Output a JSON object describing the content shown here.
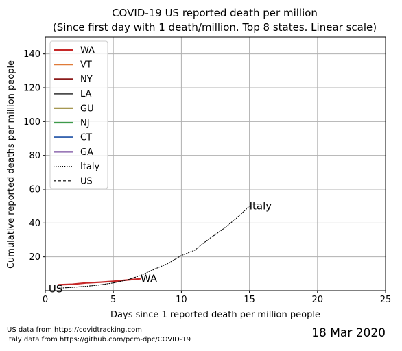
{
  "chart_data": {
    "type": "line",
    "title": "COVID-19 US reported death per million",
    "subtitle": "(Since first day with 1 death/million. Top 8 states. Linear scale)",
    "xlabel": "Days since 1 reported death per million people",
    "ylabel": "Cumulative reported deaths per million people",
    "xlim": [
      0,
      25
    ],
    "ylim": [
      0,
      150
    ],
    "xticks": [
      0,
      5,
      10,
      15,
      20,
      25
    ],
    "yticks": [
      20,
      40,
      60,
      80,
      100,
      120,
      140
    ],
    "grid": true,
    "legend_position": "top-left",
    "series": [
      {
        "name": "WA",
        "color": "#c62828",
        "style": "solid",
        "width": 2.2,
        "end_label": "WA",
        "x": [
          1,
          2,
          3,
          4,
          5,
          6,
          7
        ],
        "y": [
          3.5,
          3.8,
          4.6,
          5.0,
          5.5,
          6.3,
          7.0
        ]
      },
      {
        "name": "VT",
        "color": "#e07b39",
        "style": "solid",
        "width": 2.2,
        "x": [],
        "y": []
      },
      {
        "name": "NY",
        "color": "#8b1a1a",
        "style": "solid",
        "width": 2.2,
        "x": [],
        "y": []
      },
      {
        "name": "LA",
        "color": "#4d4d4d",
        "style": "solid",
        "width": 2.2,
        "x": [],
        "y": []
      },
      {
        "name": "GU",
        "color": "#9a8a3a",
        "style": "solid",
        "width": 2.2,
        "x": [],
        "y": []
      },
      {
        "name": "NJ",
        "color": "#3d9a4a",
        "style": "solid",
        "width": 2.2,
        "x": [],
        "y": []
      },
      {
        "name": "CT",
        "color": "#3a66b0",
        "style": "solid",
        "width": 2.2,
        "x": [],
        "y": []
      },
      {
        "name": "GA",
        "color": "#7a4fa0",
        "style": "solid",
        "width": 2.2,
        "x": [],
        "y": []
      },
      {
        "name": "Italy",
        "color": "#000000",
        "style": "dotted",
        "width": 1.1,
        "end_label": "Italy",
        "x": [
          1,
          2,
          3,
          4,
          5,
          6,
          7,
          8,
          9,
          10,
          11,
          12,
          13,
          14,
          15
        ],
        "y": [
          1.5,
          2.0,
          2.6,
          3.4,
          4.6,
          6.3,
          9.0,
          12.6,
          16.0,
          20.8,
          24.0,
          30.5,
          36.0,
          42.5,
          50.0
        ]
      },
      {
        "name": "US",
        "color": "#000000",
        "style": "dashed",
        "width": 1.1,
        "end_label": "US",
        "x": [
          1
        ],
        "y": [
          1.0
        ]
      }
    ]
  },
  "footer": {
    "source_us": "US data from https://covidtracking.com",
    "source_italy": "Italy data from https://github.com/pcm-dpc/COVID-19",
    "date": "18 Mar 2020"
  }
}
